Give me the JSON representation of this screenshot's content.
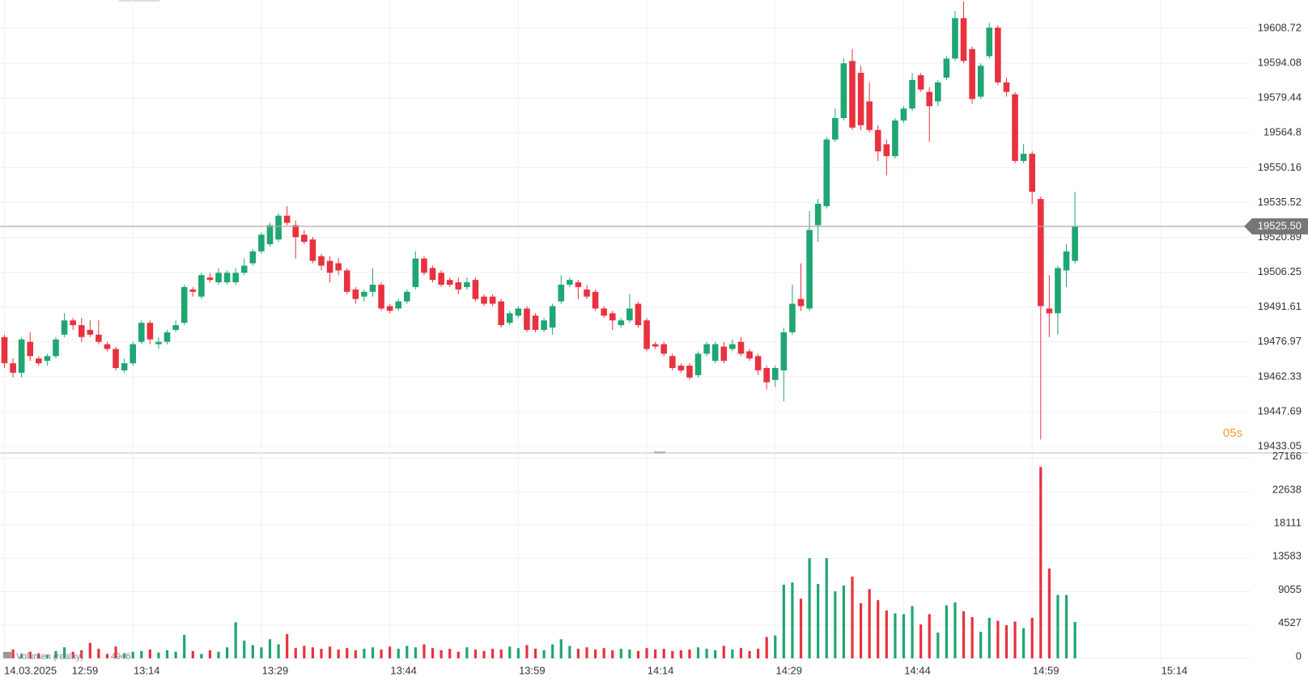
{
  "chart_data": {
    "type": "candlestick",
    "up_color": "#1fa672",
    "down_color": "#e8323f",
    "grid": true,
    "date_label": "14.03.2025",
    "xticks": [
      {
        "value": 0,
        "label": "12:59"
      },
      {
        "value": 15,
        "label": "13:14"
      },
      {
        "value": 30,
        "label": "13:29"
      },
      {
        "value": 45,
        "label": "13:44"
      },
      {
        "value": 60,
        "label": "13:59"
      },
      {
        "value": 75,
        "label": "14:14"
      },
      {
        "value": 90,
        "label": "14:29"
      },
      {
        "value": 105,
        "label": "14:44"
      },
      {
        "value": 120,
        "label": "14:59"
      },
      {
        "value": 135,
        "label": "15:14"
      }
    ],
    "xlim": [
      0,
      145.5
    ],
    "ylim": [
      19430.33,
      19620.61
    ],
    "yticks": [
      19433.05,
      19447.69,
      19462.33,
      19476.97,
      19491.61,
      19506.25,
      19520.89,
      19535.52,
      19550.16,
      19564.8,
      19579.44,
      19594.08,
      19608.72
    ],
    "last_price": {
      "value": 19525.5,
      "label": "19525.50"
    },
    "countdown": "05s",
    "open": [
      19479,
      19468,
      19464,
      19477,
      19470,
      19469,
      19471,
      19480,
      19486,
      19484,
      19482,
      19480,
      19476,
      19474,
      19465,
      19468,
      19477,
      19485,
      19476,
      19477,
      19482,
      19485,
      19499,
      19496,
      19504,
      19502,
      19502,
      19502,
      19506,
      19510,
      19515,
      19518,
      19520,
      19530,
      19526,
      19522,
      19520,
      19513,
      19511,
      19510,
      19507,
      19499,
      19496,
      19498,
      19501,
      19492,
      19491,
      19494,
      19500,
      19512,
      19508,
      19506,
      19503,
      19502,
      19500,
      19503,
      19496,
      19496,
      19494,
      19485,
      19488,
      19491,
      19488,
      19482,
      19483,
      19494,
      19501,
      19502,
      19499,
      19498,
      19491,
      19489,
      19484,
      19486,
      19493,
      19486,
      19476,
      19476,
      19471,
      19467,
      19467,
      19463,
      19472,
      19469,
      19475,
      19474,
      19477,
      19473,
      19471,
      19466,
      19461,
      19465,
      19481,
      19495,
      19491,
      19526,
      19534,
      19562,
      19571,
      19595,
      19590,
      19578,
      19566,
      19560,
      19555,
      19570,
      19575,
      19589,
      19582,
      19578,
      19588,
      19596,
      19613,
      19600,
      19580,
      19597,
      19609,
      19586,
      19581,
      19553,
      19556,
      19537,
      19491,
      19489,
      19507,
      19511
    ],
    "high": [
      19480,
      19470,
      19479,
      19481,
      19471,
      19472,
      19479,
      19489,
      19487,
      19487,
      19486,
      19486,
      19477,
      19475,
      19470,
      19477,
      19486,
      19486,
      19479,
      19482,
      19486,
      19501,
      19500,
      19506,
      19506,
      19508,
      19507,
      19508,
      19512,
      19516,
      19523,
      19527,
      19531,
      19534,
      19528,
      19524,
      19521,
      19514,
      19513,
      19512,
      19508,
      19500,
      19499,
      19508,
      19502,
      19493,
      19495,
      19499,
      19515,
      19513,
      19509,
      19507,
      19504,
      19504,
      19504,
      19504,
      19497,
      19497,
      19495,
      19490,
      19492,
      19492,
      19489,
      19487,
      19493,
      19505,
      19504,
      19503,
      19501,
      19499,
      19492,
      19490,
      19487,
      19497,
      19494,
      19487,
      19477,
      19477,
      19472,
      19468,
      19468,
      19473,
      19477,
      19477,
      19477,
      19478,
      19479,
      19474,
      19472,
      19467,
      19467,
      19483,
      19501,
      19510,
      19532,
      19537,
      19563,
      19575,
      19596,
      19600,
      19593,
      19586,
      19568,
      19562,
      19571,
      19576,
      19590,
      19590,
      19584,
      19587,
      19597,
      19616,
      19620,
      19601,
      19594,
      19611,
      19610,
      19588,
      19582,
      19560,
      19557,
      19538,
      19505,
      19509,
      19518,
      19540
    ],
    "low": [
      19466,
      19462,
      19462,
      19469,
      19467,
      19467,
      19470,
      19479,
      19482,
      19477,
      19479,
      19476,
      19473,
      19465,
      19464,
      19467,
      19476,
      19476,
      19474,
      19476,
      19481,
      19484,
      19496,
      19495,
      19502,
      19501,
      19501,
      19501,
      19505,
      19509,
      19514,
      19517,
      19519,
      19526,
      19512,
      19518,
      19510,
      19507,
      19502,
      19505,
      19497,
      19493,
      19494,
      19496,
      19490,
      19489,
      19490,
      19493,
      19499,
      19505,
      19502,
      19500,
      19500,
      19497,
      19499,
      19494,
      19492,
      19492,
      19483,
      19484,
      19487,
      19481,
      19481,
      19481,
      19480,
      19493,
      19500,
      19495,
      19495,
      19490,
      19487,
      19482,
      19483,
      19485,
      19483,
      19473,
      19474,
      19471,
      19465,
      19464,
      19461,
      19462,
      19471,
      19468,
      19468,
      19473,
      19471,
      19469,
      19463,
      19457,
      19458,
      19452,
      19480,
      19490,
      19490,
      19519,
      19533,
      19561,
      19570,
      19566,
      19566,
      19565,
      19553,
      19547,
      19554,
      19569,
      19574,
      19582,
      19561,
      19576,
      19587,
      19595,
      19594,
      19577,
      19579,
      19596,
      19585,
      19580,
      19552,
      19552,
      19535,
      19436,
      19479,
      19480,
      19500,
      19510
    ],
    "close": [
      19468,
      19464,
      19478,
      19471,
      19468,
      19471,
      19478,
      19486,
      19484,
      19479,
      19480,
      19477,
      19474,
      19466,
      19468,
      19476,
      19485,
      19478,
      19477,
      19481,
      19484,
      19500,
      19498,
      19505,
      19503,
      19506,
      19506,
      19506,
      19509,
      19515,
      19522,
      19526,
      19530,
      19527,
      19521,
      19519,
      19511,
      19509,
      19506,
      19507,
      19498,
      19495,
      19498,
      19501,
      19491,
      19490,
      19494,
      19498,
      19512,
      19506,
      19503,
      19501,
      19501,
      19499,
      19502,
      19495,
      19493,
      19493,
      19484,
      19489,
      19491,
      19482,
      19482,
      19486,
      19492,
      19501,
      19503,
      19500,
      19496,
      19491,
      19488,
      19486,
      19486,
      19491,
      19484,
      19474,
      19475,
      19472,
      19466,
      19465,
      19462,
      19472,
      19476,
      19476,
      19469,
      19476,
      19472,
      19470,
      19465,
      19460,
      19466,
      19481,
      19493,
      19492,
      19524,
      19535,
      19562,
      19571,
      19594,
      19567,
      19568,
      19566,
      19557,
      19555,
      19570,
      19575,
      19587,
      19583,
      19576,
      19586,
      19596,
      19613,
      19595,
      19579,
      19593,
      19609,
      19586,
      19582,
      19553,
      19556,
      19540,
      19492,
      19489,
      19508,
      19515,
      19525.5
    ],
    "volume": {
      "name": "Volumen (realny)",
      "ylim": [
        0,
        28000
      ],
      "yticks": [
        0,
        4527,
        9055,
        13583,
        18111,
        22638,
        27166
      ],
      "values": [
        800,
        1200,
        600,
        900,
        700,
        500,
        1000,
        1500,
        900,
        1100,
        2100,
        1300,
        600,
        1600,
        700,
        900,
        1000,
        1200,
        800,
        1100,
        900,
        3200,
        1000,
        600,
        1100,
        900,
        1500,
        4900,
        2400,
        1800,
        1500,
        2600,
        1900,
        3300,
        1400,
        1700,
        1500,
        1300,
        1600,
        1200,
        1400,
        1100,
        1300,
        1500,
        1200,
        1600,
        1300,
        1700,
        1500,
        1900,
        1400,
        1100,
        1300,
        900,
        1500,
        1200,
        1000,
        1300,
        1200,
        1600,
        1400,
        1800,
        1300,
        1100,
        1900,
        2600,
        1700,
        1300,
        1500,
        1200,
        1400,
        1100,
        1300,
        1200,
        1000,
        1400,
        1200,
        1300,
        1000,
        1100,
        1200,
        1500,
        1300,
        1100,
        1700,
        1200,
        1400,
        1000,
        1300,
        2900,
        3100,
        10000,
        10300,
        8100,
        13600,
        10100,
        13600,
        9100,
        9900,
        11100,
        7500,
        9400,
        7900,
        6500,
        6100,
        6000,
        7100,
        4600,
        6000,
        3500,
        7200,
        7600,
        6400,
        5600,
        3600,
        5500,
        5100,
        4500,
        5000,
        4100,
        5500,
        26000,
        12200,
        8600,
        8600,
        4946
      ]
    }
  }
}
